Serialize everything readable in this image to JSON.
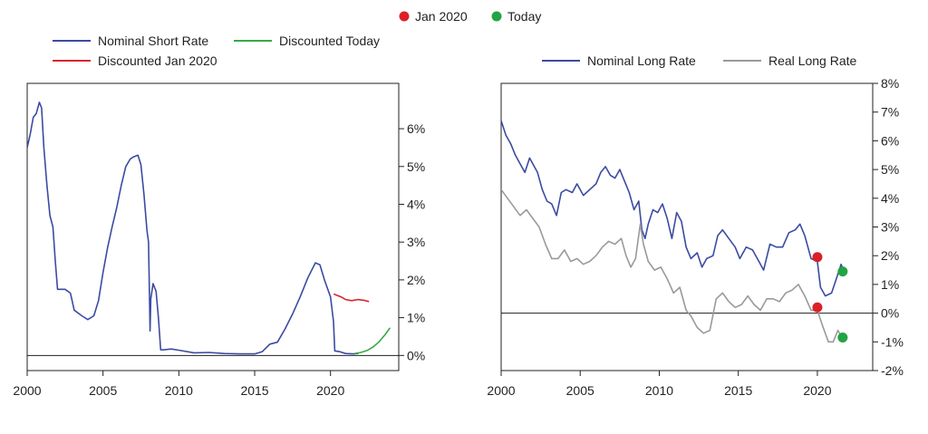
{
  "colors": {
    "nominal": "#3b4ba2",
    "real": "#9a9a9a",
    "discounted_jan": "#d7262e",
    "discounted_today": "#3aa845",
    "dot_jan": "#dc1f26",
    "dot_today": "#22a344",
    "axis": "#231f20"
  },
  "top_legend": [
    {
      "label": "Jan 2020",
      "color": "#dc1f26",
      "marker": "dot"
    },
    {
      "label": "Today",
      "color": "#22a344",
      "marker": "dot"
    }
  ],
  "chart_data": [
    {
      "type": "line",
      "title": "",
      "xlabel": "",
      "ylabel": "",
      "xlim": [
        2000,
        2024.5
      ],
      "ylim": [
        -0.4,
        7.2
      ],
      "x_ticks": [
        2000,
        2005,
        2010,
        2015,
        2020
      ],
      "x_tick_labels": [
        "2000",
        "2005",
        "2010",
        "2015",
        "2020"
      ],
      "y_ticks": [
        0,
        1,
        2,
        3,
        4,
        5,
        6
      ],
      "y_tick_labels": [
        "0%",
        "1%",
        "2%",
        "3%",
        "4%",
        "5%",
        "6%"
      ],
      "y_axis_side": "right",
      "grid": false,
      "legend_position": "top",
      "legend": [
        "Nominal Short Rate",
        "Discounted Today",
        "Discounted Jan 2020"
      ],
      "series": [
        {
          "name": "Nominal Short Rate",
          "color": "#3b4ba2",
          "points": [
            [
              2000.0,
              5.5
            ],
            [
              2000.2,
              5.85
            ],
            [
              2000.4,
              6.3
            ],
            [
              2000.6,
              6.4
            ],
            [
              2000.8,
              6.7
            ],
            [
              2000.95,
              6.55
            ],
            [
              2001.1,
              5.5
            ],
            [
              2001.3,
              4.5
            ],
            [
              2001.5,
              3.7
            ],
            [
              2001.7,
              3.4
            ],
            [
              2001.85,
              2.5
            ],
            [
              2002.0,
              1.75
            ],
            [
              2002.5,
              1.75
            ],
            [
              2002.85,
              1.65
            ],
            [
              2003.1,
              1.2
            ],
            [
              2003.6,
              1.05
            ],
            [
              2004.0,
              0.95
            ],
            [
              2004.4,
              1.05
            ],
            [
              2004.7,
              1.45
            ],
            [
              2005.0,
              2.2
            ],
            [
              2005.3,
              2.85
            ],
            [
              2005.6,
              3.4
            ],
            [
              2005.9,
              3.9
            ],
            [
              2006.2,
              4.5
            ],
            [
              2006.5,
              5.0
            ],
            [
              2006.8,
              5.2
            ],
            [
              2007.0,
              5.25
            ],
            [
              2007.3,
              5.3
            ],
            [
              2007.5,
              5.05
            ],
            [
              2007.7,
              4.25
            ],
            [
              2007.9,
              3.3
            ],
            [
              2008.0,
              3.0
            ],
            [
              2008.1,
              0.65
            ],
            [
              2008.15,
              1.5
            ],
            [
              2008.3,
              1.9
            ],
            [
              2008.5,
              1.7
            ],
            [
              2008.65,
              1.0
            ],
            [
              2008.8,
              0.15
            ],
            [
              2009.0,
              0.15
            ],
            [
              2009.5,
              0.17
            ],
            [
              2010.0,
              0.14
            ],
            [
              2011.0,
              0.07
            ],
            [
              2012.0,
              0.08
            ],
            [
              2013.0,
              0.05
            ],
            [
              2014.0,
              0.04
            ],
            [
              2015.0,
              0.04
            ],
            [
              2015.5,
              0.1
            ],
            [
              2016.0,
              0.3
            ],
            [
              2016.5,
              0.35
            ],
            [
              2017.0,
              0.7
            ],
            [
              2017.5,
              1.1
            ],
            [
              2018.0,
              1.55
            ],
            [
              2018.5,
              2.05
            ],
            [
              2019.0,
              2.45
            ],
            [
              2019.3,
              2.4
            ],
            [
              2019.6,
              2.0
            ],
            [
              2020.0,
              1.55
            ],
            [
              2020.2,
              0.9
            ],
            [
              2020.28,
              0.12
            ],
            [
              2020.6,
              0.1
            ],
            [
              2021.0,
              0.05
            ],
            [
              2021.5,
              0.04
            ],
            [
              2021.8,
              0.05
            ]
          ]
        },
        {
          "name": "Discounted Jan 2020",
          "color": "#d7262e",
          "points": [
            [
              2020.25,
              1.62
            ],
            [
              2020.7,
              1.55
            ],
            [
              2021.0,
              1.48
            ],
            [
              2021.4,
              1.45
            ],
            [
              2021.8,
              1.48
            ],
            [
              2022.2,
              1.46
            ],
            [
              2022.5,
              1.43
            ]
          ]
        },
        {
          "name": "Discounted Today",
          "color": "#3aa845",
          "points": [
            [
              2021.6,
              0.05
            ],
            [
              2022.0,
              0.08
            ],
            [
              2022.4,
              0.13
            ],
            [
              2022.8,
              0.22
            ],
            [
              2023.2,
              0.36
            ],
            [
              2023.6,
              0.55
            ],
            [
              2023.9,
              0.72
            ]
          ]
        }
      ]
    },
    {
      "type": "line",
      "title": "",
      "xlabel": "",
      "ylabel": "",
      "xlim": [
        2000,
        2023.5
      ],
      "ylim": [
        -2,
        8
      ],
      "x_ticks": [
        2000,
        2005,
        2010,
        2015,
        2020
      ],
      "x_tick_labels": [
        "2000",
        "2005",
        "2010",
        "2015",
        "2020"
      ],
      "y_ticks": [
        -2,
        -1,
        0,
        1,
        2,
        3,
        4,
        5,
        6,
        7,
        8
      ],
      "y_tick_labels": [
        "-2%",
        "-1%",
        "0%",
        "1%",
        "2%",
        "3%",
        "4%",
        "5%",
        "6%",
        "7%",
        "8%"
      ],
      "y_axis_side": "right",
      "grid": false,
      "legend_position": "top",
      "legend": [
        "Nominal Long Rate",
        "Real Long Rate"
      ],
      "series": [
        {
          "name": "Nominal Long Rate",
          "color": "#3b4ba2",
          "points": [
            [
              2000.0,
              6.7
            ],
            [
              2000.3,
              6.2
            ],
            [
              2000.6,
              5.9
            ],
            [
              2000.9,
              5.5
            ],
            [
              2001.2,
              5.2
            ],
            [
              2001.5,
              4.9
            ],
            [
              2001.8,
              5.4
            ],
            [
              2002.0,
              5.2
            ],
            [
              2002.3,
              4.9
            ],
            [
              2002.6,
              4.3
            ],
            [
              2002.9,
              3.9
            ],
            [
              2003.2,
              3.8
            ],
            [
              2003.5,
              3.4
            ],
            [
              2003.8,
              4.2
            ],
            [
              2004.1,
              4.3
            ],
            [
              2004.5,
              4.2
            ],
            [
              2004.8,
              4.5
            ],
            [
              2005.2,
              4.1
            ],
            [
              2005.6,
              4.3
            ],
            [
              2006.0,
              4.5
            ],
            [
              2006.3,
              4.9
            ],
            [
              2006.6,
              5.1
            ],
            [
              2006.9,
              4.8
            ],
            [
              2007.2,
              4.7
            ],
            [
              2007.5,
              5.0
            ],
            [
              2007.8,
              4.6
            ],
            [
              2008.1,
              4.2
            ],
            [
              2008.4,
              3.6
            ],
            [
              2008.7,
              3.9
            ],
            [
              2008.9,
              2.9
            ],
            [
              2009.1,
              2.6
            ],
            [
              2009.3,
              3.1
            ],
            [
              2009.6,
              3.6
            ],
            [
              2009.9,
              3.5
            ],
            [
              2010.2,
              3.8
            ],
            [
              2010.5,
              3.3
            ],
            [
              2010.8,
              2.6
            ],
            [
              2011.1,
              3.5
            ],
            [
              2011.4,
              3.2
            ],
            [
              2011.7,
              2.3
            ],
            [
              2012.0,
              1.9
            ],
            [
              2012.4,
              2.1
            ],
            [
              2012.7,
              1.6
            ],
            [
              2013.0,
              1.9
            ],
            [
              2013.4,
              2.0
            ],
            [
              2013.7,
              2.7
            ],
            [
              2014.0,
              2.9
            ],
            [
              2014.4,
              2.6
            ],
            [
              2014.8,
              2.3
            ],
            [
              2015.1,
              1.9
            ],
            [
              2015.5,
              2.3
            ],
            [
              2015.9,
              2.2
            ],
            [
              2016.3,
              1.8
            ],
            [
              2016.6,
              1.5
            ],
            [
              2017.0,
              2.4
            ],
            [
              2017.4,
              2.3
            ],
            [
              2017.8,
              2.3
            ],
            [
              2018.2,
              2.8
            ],
            [
              2018.6,
              2.9
            ],
            [
              2018.9,
              3.1
            ],
            [
              2019.2,
              2.7
            ],
            [
              2019.6,
              1.9
            ],
            [
              2020.0,
              1.8
            ],
            [
              2020.2,
              0.9
            ],
            [
              2020.5,
              0.6
            ],
            [
              2020.9,
              0.7
            ],
            [
              2021.2,
              1.2
            ],
            [
              2021.5,
              1.7
            ],
            [
              2021.7,
              1.4
            ]
          ]
        },
        {
          "name": "Real Long Rate",
          "color": "#9a9a9a",
          "points": [
            [
              2000.0,
              4.3
            ],
            [
              2000.4,
              4.0
            ],
            [
              2000.8,
              3.7
            ],
            [
              2001.2,
              3.4
            ],
            [
              2001.6,
              3.6
            ],
            [
              2002.0,
              3.3
            ],
            [
              2002.4,
              3.0
            ],
            [
              2002.8,
              2.4
            ],
            [
              2003.2,
              1.9
            ],
            [
              2003.6,
              1.9
            ],
            [
              2004.0,
              2.2
            ],
            [
              2004.4,
              1.8
            ],
            [
              2004.8,
              1.9
            ],
            [
              2005.2,
              1.7
            ],
            [
              2005.6,
              1.8
            ],
            [
              2006.0,
              2.0
            ],
            [
              2006.4,
              2.3
            ],
            [
              2006.8,
              2.5
            ],
            [
              2007.2,
              2.4
            ],
            [
              2007.6,
              2.6
            ],
            [
              2007.9,
              2.0
            ],
            [
              2008.2,
              1.6
            ],
            [
              2008.5,
              1.9
            ],
            [
              2008.8,
              3.1
            ],
            [
              2009.0,
              2.4
            ],
            [
              2009.3,
              1.8
            ],
            [
              2009.7,
              1.5
            ],
            [
              2010.1,
              1.6
            ],
            [
              2010.5,
              1.2
            ],
            [
              2010.9,
              0.7
            ],
            [
              2011.3,
              0.9
            ],
            [
              2011.7,
              0.1
            ],
            [
              2012.0,
              -0.1
            ],
            [
              2012.4,
              -0.5
            ],
            [
              2012.8,
              -0.7
            ],
            [
              2013.2,
              -0.6
            ],
            [
              2013.6,
              0.5
            ],
            [
              2014.0,
              0.7
            ],
            [
              2014.4,
              0.4
            ],
            [
              2014.8,
              0.2
            ],
            [
              2015.2,
              0.3
            ],
            [
              2015.6,
              0.6
            ],
            [
              2016.0,
              0.3
            ],
            [
              2016.4,
              0.1
            ],
            [
              2016.8,
              0.5
            ],
            [
              2017.2,
              0.5
            ],
            [
              2017.6,
              0.4
            ],
            [
              2018.0,
              0.7
            ],
            [
              2018.4,
              0.8
            ],
            [
              2018.8,
              1.0
            ],
            [
              2019.2,
              0.6
            ],
            [
              2019.6,
              0.1
            ],
            [
              2020.0,
              0.1
            ],
            [
              2020.3,
              -0.4
            ],
            [
              2020.7,
              -1.0
            ],
            [
              2021.0,
              -1.0
            ],
            [
              2021.3,
              -0.6
            ],
            [
              2021.6,
              -0.9
            ]
          ]
        }
      ],
      "markers": [
        {
          "label": "Jan 2020",
          "series": "Nominal Long Rate",
          "x": 2020.0,
          "y": 1.95,
          "color": "#dc1f26"
        },
        {
          "label": "Jan 2020",
          "series": "Real Long Rate",
          "x": 2020.0,
          "y": 0.2,
          "color": "#dc1f26"
        },
        {
          "label": "Today",
          "series": "Nominal Long Rate",
          "x": 2021.6,
          "y": 1.45,
          "color": "#22a344"
        },
        {
          "label": "Today",
          "series": "Real Long Rate",
          "x": 2021.6,
          "y": -0.85,
          "color": "#22a344"
        }
      ]
    }
  ]
}
